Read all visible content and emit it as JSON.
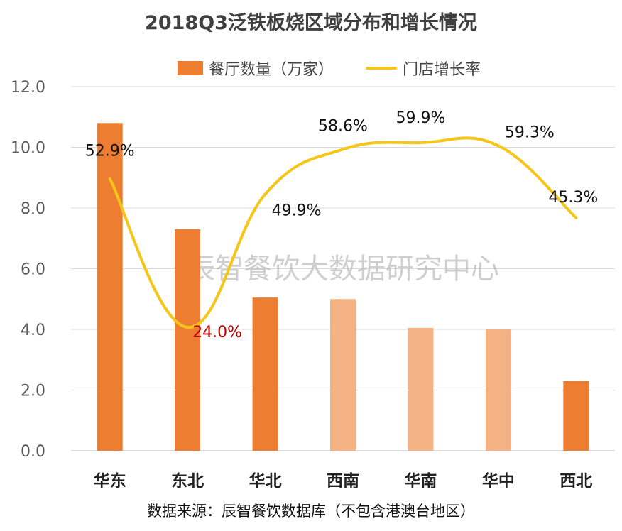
{
  "title": "2018Q3泛铁板烧区域分布和增长情况",
  "legend": {
    "bar_label": "餐厅数量（万家）",
    "line_label": "门店增长率"
  },
  "watermark": "辰智餐饮大数据研究中心",
  "source": "数据来源：辰智餐饮数据库（不包含港澳台地区）",
  "colors": {
    "bar_dark": "#ED7D31",
    "bar_light": "#F4B183",
    "line": "#F5C518",
    "highlight_label": "#C00000",
    "grid": "#D9D9D9",
    "axis_text": "#595959"
  },
  "chart_data": {
    "type": "bar",
    "categories": [
      "华东",
      "东北",
      "华北",
      "西南",
      "华南",
      "华中",
      "西北"
    ],
    "series": [
      {
        "name": "餐厅数量（万家）",
        "type": "bar",
        "values": [
          10.8,
          7.3,
          5.05,
          5.0,
          4.05,
          4.0,
          2.3
        ],
        "shades": [
          "dark",
          "dark",
          "dark",
          "light",
          "light",
          "light",
          "dark"
        ]
      },
      {
        "name": "门店增长率",
        "type": "line",
        "values": [
          52.9,
          24.0,
          49.9,
          58.6,
          59.9,
          59.3,
          45.3
        ],
        "labels": [
          "52.9%",
          "24.0%",
          "49.9%",
          "58.6%",
          "59.9%",
          "59.3%",
          "45.3%"
        ],
        "highlight": [
          false,
          true,
          false,
          false,
          false,
          false,
          false
        ]
      }
    ],
    "ylim": [
      0,
      12
    ],
    "yticks": [
      "0.0",
      "2.0",
      "4.0",
      "6.0",
      "8.0",
      "10.0",
      "12.0"
    ],
    "grid": true,
    "legend_position": "top"
  }
}
